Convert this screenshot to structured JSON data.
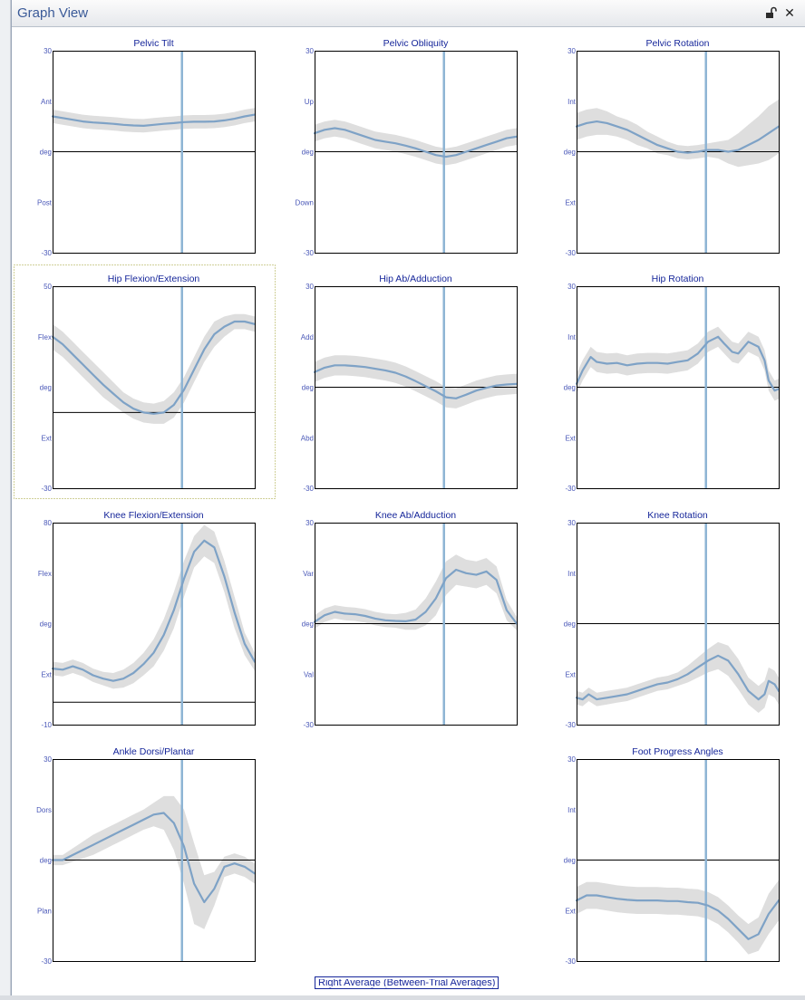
{
  "window": {
    "title": "Graph View",
    "unlock_icon": "unlock-icon",
    "close_icon": "close-icon",
    "close_label": "✕"
  },
  "colors": {
    "curve": "#7ea2c6",
    "band": "#dedede",
    "marker": "#8db4d4",
    "title": "#16269a",
    "ticks": "#4a58b8"
  },
  "footer": {
    "label": "Right Average (Between-Trial Averages)"
  },
  "chart_data": [
    {
      "title": "Pelvic Tilt",
      "type": "line",
      "ylim": [
        -30,
        30
      ],
      "ylabels": [
        "30",
        "Ant",
        "deg",
        "Post",
        "-30"
      ],
      "x": [
        0,
        5,
        10,
        15,
        20,
        25,
        30,
        35,
        40,
        45,
        50,
        55,
        60,
        65,
        70,
        75,
        80,
        85,
        90,
        95,
        100
      ],
      "mean": [
        10.5,
        10,
        9.5,
        9,
        8.7,
        8.5,
        8.3,
        8,
        7.8,
        7.7,
        8,
        8.3,
        8.5,
        8.8,
        8.9,
        8.9,
        9,
        9.3,
        9.8,
        10.5,
        11
      ],
      "sd": [
        2,
        2,
        2,
        2,
        2,
        2,
        2,
        2,
        2,
        2,
        2,
        2,
        2,
        2,
        2,
        2,
        2,
        2,
        2,
        2,
        2
      ],
      "marker": 64
    },
    {
      "title": "Pelvic Obliquity",
      "type": "line",
      "ylim": [
        -30,
        30
      ],
      "ylabels": [
        "30",
        "Up",
        "deg",
        "Down",
        "-30"
      ],
      "x": [
        0,
        5,
        10,
        15,
        20,
        25,
        30,
        35,
        40,
        45,
        50,
        55,
        60,
        65,
        70,
        75,
        80,
        85,
        90,
        95,
        100
      ],
      "mean": [
        5.5,
        6.5,
        7,
        6.5,
        5.5,
        4.5,
        3.5,
        3,
        2.5,
        1.8,
        1,
        0,
        -1,
        -1.5,
        -1,
        0,
        1,
        2,
        3,
        4,
        4.5
      ],
      "sd": [
        2.5,
        2.5,
        2.5,
        2.5,
        2.5,
        2.5,
        2.5,
        2.5,
        2.5,
        2.5,
        2.5,
        2.5,
        2.5,
        2.5,
        2.5,
        2.5,
        2.5,
        2.5,
        2.5,
        2.5,
        2.5
      ],
      "marker": 64
    },
    {
      "title": "Pelvic Rotation",
      "type": "line",
      "ylim": [
        -30,
        30
      ],
      "ylabels": [
        "30",
        "Int",
        "deg",
        "Ext",
        "-30"
      ],
      "x": [
        0,
        5,
        10,
        15,
        20,
        25,
        30,
        35,
        40,
        45,
        50,
        55,
        60,
        65,
        70,
        75,
        80,
        85,
        90,
        95,
        100
      ],
      "mean": [
        7.5,
        8.5,
        9,
        8.5,
        7.5,
        6.5,
        5,
        3.5,
        2,
        1,
        0,
        -0.3,
        0,
        0.5,
        0.5,
        0,
        0.5,
        2,
        3.5,
        5.5,
        7.5
      ],
      "sd": [
        4,
        4,
        4,
        3.5,
        3,
        3,
        3,
        2.5,
        2.5,
        2,
        2,
        2,
        2,
        2,
        2.5,
        3.5,
        5,
        6,
        7,
        8,
        8
      ],
      "marker": 64
    },
    {
      "title": "Hip Flexion/Extension",
      "type": "line",
      "ylim": [
        -30,
        50
      ],
      "ylabels": [
        "50",
        "Flex",
        "deg",
        "Ext",
        "-30"
      ],
      "x": [
        0,
        5,
        10,
        15,
        20,
        25,
        30,
        35,
        40,
        45,
        50,
        55,
        60,
        65,
        70,
        75,
        80,
        85,
        90,
        95,
        100
      ],
      "mean": [
        30,
        27,
        23,
        19,
        15,
        11,
        7.5,
        4,
        1.5,
        0,
        -0.5,
        0,
        3,
        9,
        17,
        25,
        31,
        34,
        36,
        36,
        35
      ],
      "sd": [
        5,
        5,
        5,
        5,
        5,
        5,
        4.5,
        4,
        4,
        4,
        4,
        4.5,
        5,
        5,
        5,
        5,
        5,
        4,
        3,
        3,
        3
      ],
      "marker": 64
    },
    {
      "title": "Hip Ab/Adduction",
      "type": "line",
      "ylim": [
        -30,
        30
      ],
      "ylabels": [
        "30",
        "Add",
        "deg",
        "Abd",
        "-30"
      ],
      "x": [
        0,
        5,
        10,
        15,
        20,
        25,
        30,
        35,
        40,
        45,
        50,
        55,
        60,
        65,
        70,
        75,
        80,
        85,
        90,
        95,
        100
      ],
      "mean": [
        4.5,
        5.8,
        6.5,
        6.5,
        6.3,
        6,
        5.5,
        5,
        4.3,
        3.2,
        1.8,
        0.3,
        -1.2,
        -3,
        -3.3,
        -2.2,
        -1,
        -0.2,
        0.5,
        0.8,
        1
      ],
      "sd": [
        3,
        3,
        3,
        3,
        3,
        3,
        3,
        3,
        3,
        3,
        3,
        3,
        3,
        3,
        3,
        3,
        3,
        3,
        3,
        3,
        3
      ],
      "marker": 64
    },
    {
      "title": "Hip Rotation",
      "type": "line",
      "ylim": [
        -30,
        30
      ],
      "ylabels": [
        "30",
        "Int",
        "deg",
        "Ext",
        "-30"
      ],
      "x": [
        0,
        3,
        7,
        10,
        15,
        20,
        25,
        30,
        35,
        40,
        45,
        50,
        55,
        60,
        65,
        70,
        73,
        77,
        80,
        85,
        90,
        93,
        95,
        98,
        100
      ],
      "mean": [
        1,
        5,
        9,
        7.5,
        7,
        7.2,
        6.5,
        7,
        7.2,
        7.2,
        7,
        7.5,
        8,
        10,
        13.5,
        15,
        13,
        10.5,
        10,
        13.5,
        12,
        8,
        2,
        -1,
        -0.5
      ],
      "sd": [
        3,
        3,
        3,
        3,
        3,
        3,
        3,
        3,
        3,
        3,
        3,
        3,
        3,
        3,
        3,
        3,
        3,
        3,
        3,
        3,
        3,
        3,
        3,
        3,
        3
      ],
      "marker": 64
    },
    {
      "title": "Knee Flexion/Extension",
      "type": "line",
      "ylim": [
        -10,
        80
      ],
      "ylabels": [
        "80",
        "Flex",
        "deg",
        "Ext",
        "-10"
      ],
      "x": [
        0,
        5,
        10,
        15,
        20,
        25,
        30,
        35,
        40,
        45,
        50,
        55,
        60,
        65,
        70,
        75,
        80,
        85,
        90,
        95,
        100
      ],
      "mean": [
        15,
        14.5,
        16,
        14.5,
        12,
        10.5,
        9.5,
        10.5,
        13,
        17,
        22,
        30,
        41,
        55,
        67,
        72,
        69,
        56,
        40,
        26,
        18
      ],
      "sd": [
        3,
        3,
        3,
        3,
        3,
        3,
        3.5,
        4,
        4.5,
        5,
        6,
        7,
        8,
        8,
        7,
        7,
        7,
        7,
        7,
        5,
        4
      ],
      "marker": 64
    },
    {
      "title": "Knee Ab/Adduction",
      "type": "line",
      "ylim": [
        -30,
        30
      ],
      "ylabels": [
        "30",
        "Var",
        "deg",
        "Val",
        "-30"
      ],
      "x": [
        0,
        5,
        10,
        15,
        20,
        25,
        30,
        35,
        40,
        45,
        50,
        55,
        60,
        65,
        70,
        75,
        80,
        85,
        90,
        95,
        100
      ],
      "mean": [
        0.5,
        2.5,
        3.5,
        3,
        2.8,
        2.3,
        1.5,
        1,
        0.8,
        0.7,
        1.2,
        3.5,
        7.5,
        13.5,
        16,
        15,
        14.5,
        15.5,
        13,
        4,
        0
      ],
      "sd": [
        2,
        2,
        2,
        2,
        2,
        2,
        2,
        2,
        2,
        2.5,
        3,
        4,
        5,
        5,
        4.5,
        4,
        4,
        4,
        4,
        3,
        2
      ],
      "marker": 64
    },
    {
      "title": "Knee Rotation",
      "type": "line",
      "ylim": [
        -30,
        30
      ],
      "ylabels": [
        "30",
        "Int",
        "deg",
        "Ext",
        "-30"
      ],
      "x": [
        0,
        3,
        6,
        10,
        15,
        20,
        25,
        30,
        35,
        40,
        45,
        50,
        55,
        60,
        65,
        70,
        75,
        80,
        85,
        90,
        93,
        95,
        98,
        100
      ],
      "mean": [
        -22,
        -22.5,
        -21,
        -22.5,
        -22,
        -21.5,
        -21,
        -20,
        -19,
        -18,
        -17.5,
        -16.5,
        -15,
        -13,
        -11,
        -9.5,
        -11,
        -15,
        -20,
        -22.5,
        -21,
        -17,
        -18,
        -20
      ],
      "sd": [
        2,
        2,
        2,
        2,
        2,
        2,
        2,
        2,
        2,
        2,
        2,
        2,
        2.5,
        3,
        3.5,
        4,
        4.5,
        4.5,
        4,
        4,
        4,
        4,
        4,
        4
      ],
      "marker": 64
    },
    {
      "title": "Ankle Dorsi/Plantar",
      "type": "line",
      "ylim": [
        -30,
        30
      ],
      "ylabels": [
        "30",
        "Dors",
        "deg",
        "Plan",
        "-30"
      ],
      "x": [
        0,
        5,
        10,
        15,
        20,
        25,
        30,
        35,
        40,
        45,
        50,
        55,
        60,
        65,
        70,
        75,
        80,
        85,
        90,
        95,
        100
      ],
      "mean": [
        0,
        0,
        1.5,
        3,
        4.5,
        6,
        7.5,
        9,
        10.5,
        12,
        13.5,
        14,
        11,
        4,
        -7,
        -12.5,
        -8.5,
        -2,
        -1,
        -2,
        -4
      ],
      "sd": [
        1.5,
        1.5,
        2,
        2.5,
        3,
        3,
        3,
        3,
        3,
        3,
        3.5,
        5,
        8,
        11,
        12,
        8,
        5,
        3,
        3,
        3,
        3
      ],
      "marker": 64
    },
    {
      "title": "Foot Progress Angles",
      "type": "line",
      "ylim": [
        -30,
        30
      ],
      "ylabels": [
        "30",
        "Int",
        "deg",
        "Ext",
        "-30"
      ],
      "x": [
        0,
        5,
        10,
        15,
        20,
        25,
        30,
        35,
        40,
        45,
        50,
        55,
        60,
        65,
        70,
        75,
        80,
        85,
        90,
        95,
        100
      ],
      "mean": [
        -12,
        -10.5,
        -10.5,
        -11,
        -11.5,
        -11.8,
        -12,
        -12,
        -12,
        -12.2,
        -12.2,
        -12.5,
        -12.7,
        -13.5,
        -15,
        -17.5,
        -20.5,
        -23.5,
        -22,
        -16,
        -12
      ],
      "sd": [
        4,
        4,
        4,
        4,
        4,
        4,
        4,
        4,
        4,
        4,
        4,
        4,
        4,
        4,
        4,
        4,
        4,
        4.5,
        5,
        6,
        6
      ],
      "marker": 64
    }
  ]
}
